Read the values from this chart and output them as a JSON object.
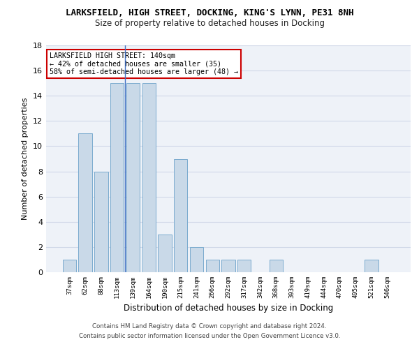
{
  "title1": "LARKSFIELD, HIGH STREET, DOCKING, KING'S LYNN, PE31 8NH",
  "title2": "Size of property relative to detached houses in Docking",
  "xlabel": "Distribution of detached houses by size in Docking",
  "ylabel": "Number of detached properties",
  "categories": [
    "37sqm",
    "62sqm",
    "88sqm",
    "113sqm",
    "139sqm",
    "164sqm",
    "190sqm",
    "215sqm",
    "241sqm",
    "266sqm",
    "292sqm",
    "317sqm",
    "342sqm",
    "368sqm",
    "393sqm",
    "419sqm",
    "444sqm",
    "470sqm",
    "495sqm",
    "521sqm",
    "546sqm"
  ],
  "values": [
    1,
    11,
    8,
    15,
    15,
    15,
    3,
    9,
    2,
    1,
    1,
    1,
    0,
    1,
    0,
    0,
    0,
    0,
    0,
    1,
    0
  ],
  "bar_color": "#c9d9e8",
  "bar_edge_color": "#7aabcf",
  "vline_index": 3,
  "annotation_line1": "LARKSFIELD HIGH STREET: 140sqm",
  "annotation_line2": "← 42% of detached houses are smaller (35)",
  "annotation_line3": "58% of semi-detached houses are larger (48) →",
  "annotation_box_color": "#ffffff",
  "annotation_box_edge_color": "#cc0000",
  "vline_color": "#4472c4",
  "grid_color": "#d0d8e8",
  "bg_color": "#eef2f8",
  "ylim": [
    0,
    18
  ],
  "yticks": [
    0,
    2,
    4,
    6,
    8,
    10,
    12,
    14,
    16,
    18
  ],
  "footer1": "Contains HM Land Registry data © Crown copyright and database right 2024.",
  "footer2": "Contains public sector information licensed under the Open Government Licence v3.0."
}
